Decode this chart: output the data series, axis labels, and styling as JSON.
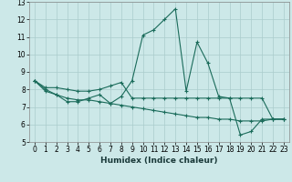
{
  "xlabel": "Humidex (Indice chaleur)",
  "background_color": "#cce8e8",
  "line_color": "#1a6b5a",
  "grid_color": "#aacccc",
  "xlim": [
    -0.5,
    23.5
  ],
  "ylim": [
    5,
    13
  ],
  "xticks": [
    0,
    1,
    2,
    3,
    4,
    5,
    6,
    7,
    8,
    9,
    10,
    11,
    12,
    13,
    14,
    15,
    16,
    17,
    18,
    19,
    20,
    21,
    22,
    23
  ],
  "yticks": [
    5,
    6,
    7,
    8,
    9,
    10,
    11,
    12,
    13
  ],
  "line1_x": [
    0,
    1,
    2,
    3,
    4,
    5,
    6,
    7,
    8,
    9,
    10,
    11,
    12,
    13,
    14,
    15,
    16,
    17,
    18,
    19,
    20,
    21,
    22,
    23
  ],
  "line1_y": [
    8.5,
    7.9,
    7.7,
    7.3,
    7.3,
    7.5,
    7.7,
    7.2,
    7.6,
    8.5,
    11.1,
    11.4,
    12.0,
    12.6,
    7.9,
    10.7,
    9.5,
    7.6,
    7.5,
    5.4,
    5.6,
    6.3,
    6.3,
    6.3
  ],
  "line2_x": [
    0,
    1,
    2,
    3,
    4,
    5,
    6,
    7,
    8,
    9,
    10,
    11,
    12,
    13,
    14,
    15,
    16,
    17,
    18,
    19,
    20,
    21,
    22,
    23
  ],
  "line2_y": [
    8.5,
    8.1,
    8.1,
    8.0,
    7.9,
    7.9,
    8.0,
    8.2,
    8.4,
    7.5,
    7.5,
    7.5,
    7.5,
    7.5,
    7.5,
    7.5,
    7.5,
    7.5,
    7.5,
    7.5,
    7.5,
    7.5,
    6.3,
    6.3
  ],
  "line3_x": [
    0,
    1,
    2,
    3,
    4,
    5,
    6,
    7,
    8,
    9,
    10,
    11,
    12,
    13,
    14,
    15,
    16,
    17,
    18,
    19,
    20,
    21,
    22,
    23
  ],
  "line3_y": [
    8.5,
    8.0,
    7.7,
    7.5,
    7.4,
    7.4,
    7.3,
    7.2,
    7.1,
    7.0,
    6.9,
    6.8,
    6.7,
    6.6,
    6.5,
    6.4,
    6.4,
    6.3,
    6.3,
    6.2,
    6.2,
    6.2,
    6.3,
    6.3
  ],
  "xlabel_fontsize": 6.5,
  "tick_fontsize": 5.5,
  "linewidth": 0.8,
  "markersize": 2.5
}
